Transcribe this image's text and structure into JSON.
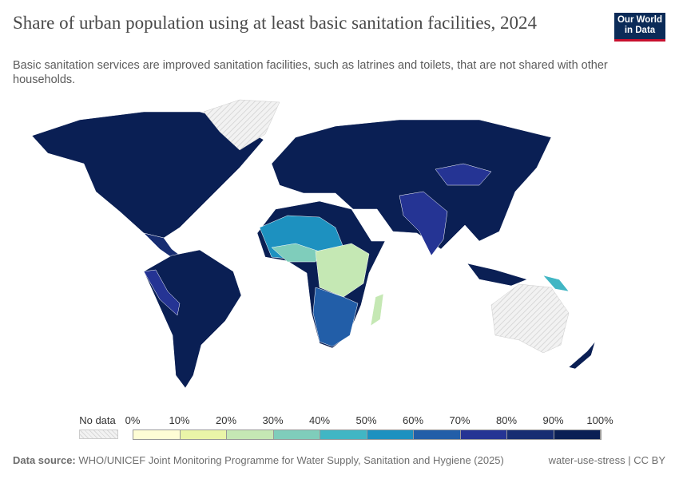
{
  "header": {
    "title": "Share of urban population using at least basic sanitation facilities, 2024",
    "subtitle": "Basic sanitation services are improved sanitation facilities, such as latrines and toilets, that are not shared with other households.",
    "logo": "Our World in Data"
  },
  "legend": {
    "no_data_label": "No data",
    "ticks": [
      "0%",
      "10%",
      "20%",
      "30%",
      "40%",
      "50%",
      "60%",
      "70%",
      "80%",
      "90%",
      "100%"
    ],
    "colors": [
      "#fefdd5",
      "#eaf5a8",
      "#c5e8b4",
      "#7fcdbb",
      "#41b6c4",
      "#1d91c0",
      "#225ea8",
      "#253494",
      "#172d72",
      "#0a1f54"
    ],
    "no_data_color": "#e8e8e8"
  },
  "footer": {
    "source_label": "Data source:",
    "source": "WHO/UNICEF Joint Monitoring Programme for Water Supply, Sanitation and Hygiene (2025)",
    "credit": "water-use-stress | CC BY"
  }
}
